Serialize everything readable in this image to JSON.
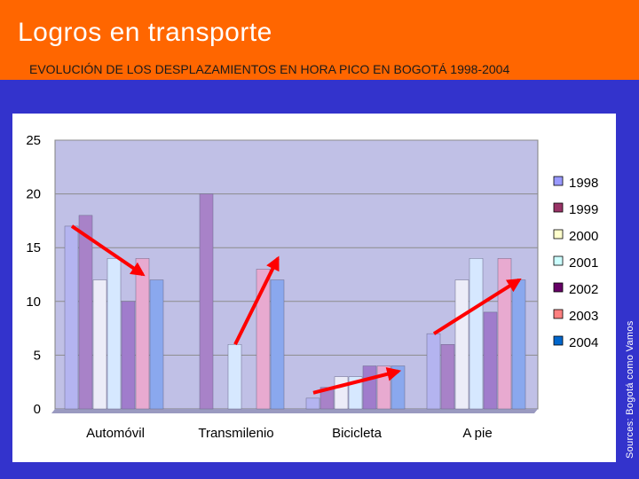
{
  "slide": {
    "title": "Logros en transporte",
    "subtitle": "EVOLUCIÓN DE LOS DESPLAZAMIENTOS EN HORA PICO EN BOGOTÁ 1998-2004",
    "source": "Sources: Bogotá como Vamos"
  },
  "colors": {
    "header": "#ff6600",
    "background": "#3333cc",
    "plot_bg": "#c0c0e6",
    "arrow": "#ff0000"
  },
  "chart_data": {
    "type": "bar",
    "title": "",
    "xlabel": "",
    "ylabel": "",
    "ylim": [
      0,
      25
    ],
    "yticks": [
      0,
      5,
      10,
      15,
      20,
      25
    ],
    "grid": true,
    "legend": "right",
    "categories": [
      "Automóvil",
      "Transmilenio",
      "Bicicleta",
      "A pie"
    ],
    "series": [
      {
        "name": "1998",
        "color": "#b4b4f0",
        "values": [
          17,
          0,
          1,
          7
        ]
      },
      {
        "name": "1999",
        "color": "#a882c8",
        "values": [
          18,
          20,
          2,
          6
        ]
      },
      {
        "name": "2000",
        "color": "#ececf8",
        "values": [
          12,
          0,
          3,
          12
        ]
      },
      {
        "name": "2001",
        "color": "#d6e8ff",
        "values": [
          14,
          6,
          3,
          14
        ]
      },
      {
        "name": "2002",
        "color": "#a07ccc",
        "values": [
          10,
          0,
          4,
          9
        ]
      },
      {
        "name": "2003",
        "color": "#e8aad0",
        "values": [
          14,
          13,
          4,
          14
        ]
      },
      {
        "name": "2004",
        "color": "#8aa8ee",
        "values": [
          12,
          12,
          4,
          12
        ]
      }
    ],
    "legend_swatches": [
      "#9999ff",
      "#993366",
      "#ffffcc",
      "#ccffff",
      "#660066",
      "#ff8080",
      "#0066cc"
    ],
    "annotations": [
      {
        "category": "Automóvil",
        "from_value": 17,
        "to_value": 12.5,
        "label": "decrease arrow"
      },
      {
        "category": "Transmilenio",
        "from_value": 6,
        "to_value": 14,
        "label": "increase arrow"
      },
      {
        "category": "Bicicleta",
        "from_value": 1.5,
        "to_value": 3.5,
        "label": "increase arrow"
      },
      {
        "category": "A pie",
        "from_value": 7,
        "to_value": 12,
        "label": "increase arrow"
      }
    ]
  }
}
